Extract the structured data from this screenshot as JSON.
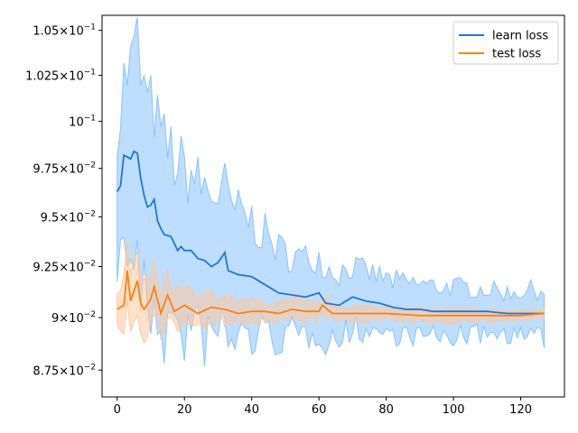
{
  "chart_data": {
    "type": "line",
    "title": "",
    "xlabel": "",
    "ylabel": "",
    "xlim": [
      -4.5,
      133
    ],
    "ylim": [
      0.08625,
      0.10585
    ],
    "y_scale": "log",
    "grid": false,
    "legend_placement": "top-right",
    "xticks": [
      0,
      20,
      40,
      60,
      80,
      100,
      120
    ],
    "yticks": [
      {
        "value": 0.0875,
        "mant": "8.75",
        "exp": "-2"
      },
      {
        "value": 0.09,
        "mant": "9",
        "exp": "-2"
      },
      {
        "value": 0.0925,
        "mant": "9.25",
        "exp": "-2"
      },
      {
        "value": 0.095,
        "mant": "9.5",
        "exp": "-2"
      },
      {
        "value": 0.0975,
        "mant": "9.75",
        "exp": "-2"
      },
      {
        "value": 0.1,
        "mant": "",
        "exp": "-1",
        "base_only": true
      },
      {
        "value": 0.1025,
        "mant": "1.025",
        "exp": "-1"
      },
      {
        "value": 0.105,
        "mant": "1.05",
        "exp": "-1"
      }
    ],
    "series": [
      {
        "name": "learn loss",
        "color": "#1f77d8",
        "band_color": "#87c3ff",
        "x_start": 0,
        "keypoints": [
          [
            0,
            0.0963
          ],
          [
            1,
            0.0966
          ],
          [
            2,
            0.0982
          ],
          [
            3,
            0.0981
          ],
          [
            4,
            0.098
          ],
          [
            5,
            0.0984
          ],
          [
            6,
            0.0983
          ],
          [
            7,
            0.097
          ],
          [
            8,
            0.0961
          ],
          [
            9,
            0.0955
          ],
          [
            10,
            0.0956
          ],
          [
            11,
            0.0959
          ],
          [
            12,
            0.0948
          ],
          [
            13,
            0.0944
          ],
          [
            14,
            0.0941
          ],
          [
            16,
            0.094
          ],
          [
            18,
            0.0933
          ],
          [
            19,
            0.0935
          ],
          [
            20,
            0.0933
          ],
          [
            22,
            0.0933
          ],
          [
            24,
            0.0929
          ],
          [
            26,
            0.0928
          ],
          [
            28,
            0.0925
          ],
          [
            30,
            0.0927
          ],
          [
            32,
            0.0932
          ],
          [
            33,
            0.0923
          ],
          [
            36,
            0.0921
          ],
          [
            40,
            0.092
          ],
          [
            44,
            0.0916
          ],
          [
            48,
            0.0912
          ],
          [
            52,
            0.0911
          ],
          [
            56,
            0.091
          ],
          [
            60,
            0.0912
          ],
          [
            62,
            0.0907
          ],
          [
            66,
            0.0906
          ],
          [
            70,
            0.091
          ],
          [
            74,
            0.0908
          ],
          [
            78,
            0.0907
          ],
          [
            82,
            0.0905
          ],
          [
            86,
            0.0904
          ],
          [
            90,
            0.0904
          ],
          [
            94,
            0.0903
          ],
          [
            100,
            0.0903
          ],
          [
            104,
            0.0903
          ],
          [
            110,
            0.0903
          ],
          [
            116,
            0.0902
          ],
          [
            122,
            0.0902
          ],
          [
            127,
            0.0902
          ]
        ],
        "band_halfwidth_keypoints": [
          [
            0,
            0.0033
          ],
          [
            6,
            0.0058
          ],
          [
            10,
            0.005
          ],
          [
            20,
            0.004
          ],
          [
            30,
            0.0035
          ],
          [
            40,
            0.0028
          ],
          [
            50,
            0.002
          ],
          [
            60,
            0.0018
          ],
          [
            70,
            0.0015
          ],
          [
            80,
            0.0013
          ],
          [
            100,
            0.0012
          ],
          [
            115,
            0.001
          ],
          [
            127,
            0.0012
          ]
        ]
      },
      {
        "name": "test loss",
        "color": "#ff7f0e",
        "band_color": "#ffc89a",
        "x_start": 0,
        "keypoints": [
          [
            0,
            0.0904
          ],
          [
            2,
            0.0906
          ],
          [
            3,
            0.0923
          ],
          [
            4,
            0.0908
          ],
          [
            5,
            0.0913
          ],
          [
            6,
            0.0918
          ],
          [
            7,
            0.0907
          ],
          [
            8,
            0.0904
          ],
          [
            10,
            0.0909
          ],
          [
            11,
            0.0915
          ],
          [
            13,
            0.0902
          ],
          [
            15,
            0.0911
          ],
          [
            17,
            0.0903
          ],
          [
            20,
            0.0906
          ],
          [
            24,
            0.0902
          ],
          [
            28,
            0.0905
          ],
          [
            32,
            0.0904
          ],
          [
            36,
            0.0902
          ],
          [
            40,
            0.0903
          ],
          [
            44,
            0.0903
          ],
          [
            48,
            0.0902
          ],
          [
            52,
            0.0904
          ],
          [
            56,
            0.0903
          ],
          [
            60,
            0.0903
          ],
          [
            61,
            0.0906
          ],
          [
            64,
            0.0902
          ],
          [
            70,
            0.0902
          ],
          [
            80,
            0.0902
          ],
          [
            90,
            0.0901
          ],
          [
            100,
            0.0901
          ],
          [
            110,
            0.0901
          ],
          [
            120,
            0.0901
          ],
          [
            127,
            0.0902
          ]
        ],
        "band_halfwidth_keypoints": [
          [
            0,
            0.0006
          ],
          [
            4,
            0.0016
          ],
          [
            10,
            0.001
          ],
          [
            20,
            0.0008
          ],
          [
            40,
            0.0005
          ],
          [
            60,
            0.0004
          ],
          [
            80,
            0.0003
          ],
          [
            100,
            0.0003
          ],
          [
            127,
            0.0002
          ]
        ]
      }
    ],
    "n_points": 128
  }
}
